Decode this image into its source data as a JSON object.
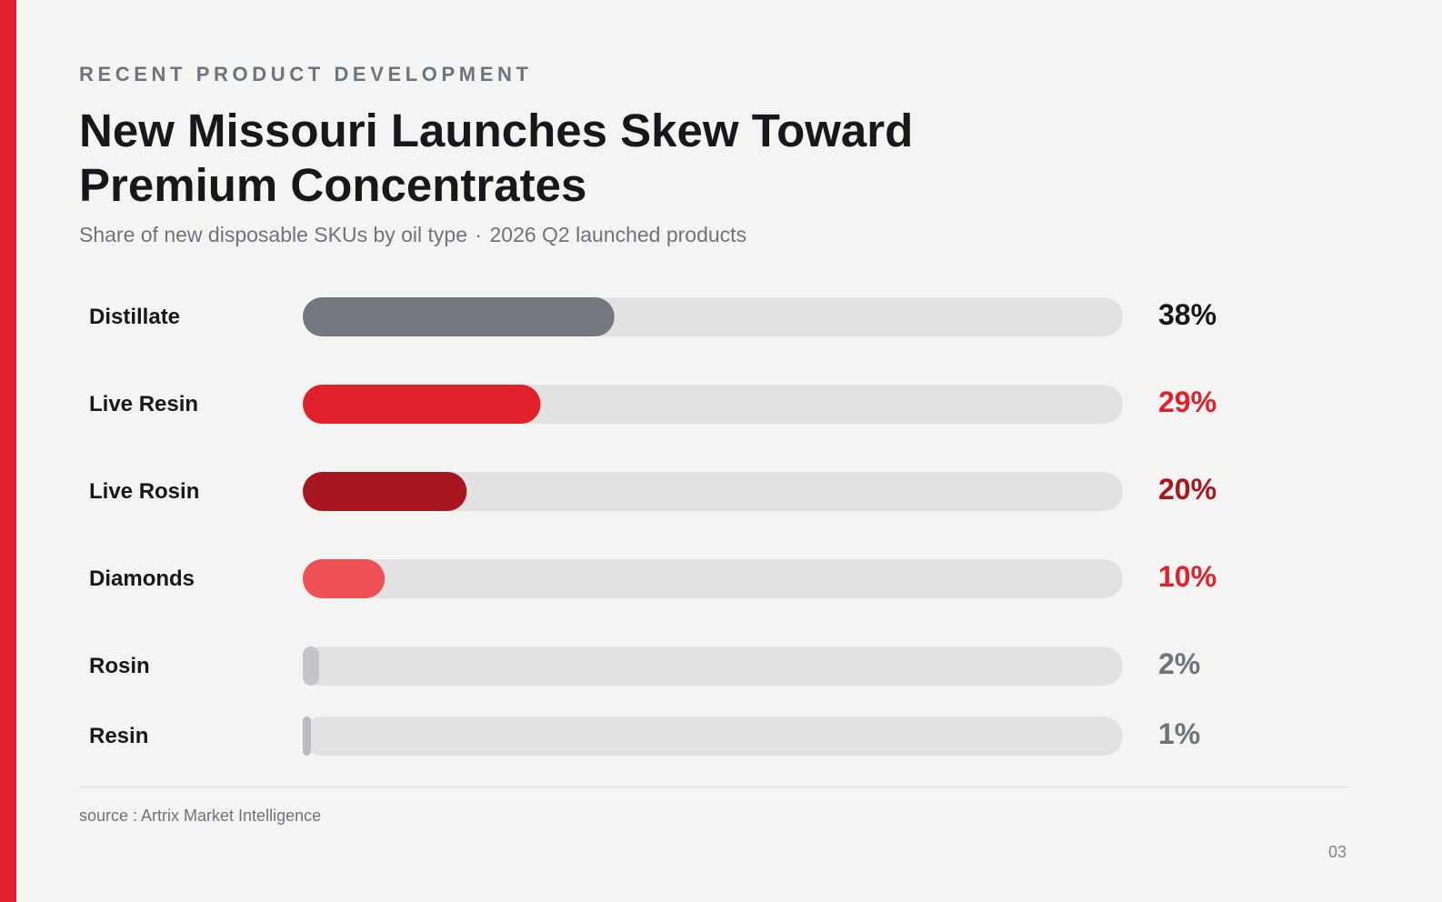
{
  "eyebrow": "RECENT PRODUCT DEVELOPMENT",
  "title": "New Missouri Launches Skew Toward Premium Concentrates",
  "subtitle": {
    "left": "Share of new disposable SKUs by oil type",
    "separator": "·",
    "right": "2026 Q2 launched products"
  },
  "chart_data": {
    "type": "bar",
    "orientation": "horizontal",
    "categories": [
      "Distillate",
      "Live Resin",
      "Live Rosin",
      "Diamonds",
      "Rosin",
      "Resin"
    ],
    "values": [
      38,
      29,
      20,
      10,
      2,
      1
    ],
    "value_labels": [
      "38%",
      "29%",
      "20%",
      "10%",
      "2%",
      "1%"
    ],
    "unit": "%",
    "xlim": [
      0,
      100
    ],
    "grid": false,
    "legend": "none",
    "track_color": "#e2e2e3",
    "bar_colors": [
      "#73787f",
      "#e0212b",
      "#a8161f",
      "#ef5056",
      "#c3c5ca",
      "#b8bbc0"
    ],
    "label_colors": [
      "#16181c",
      "#e0212b",
      "#a8161f",
      "#e0212b",
      "#6f737b",
      "#6f737b"
    ]
  },
  "source": "source : Artrix Market Intelligence",
  "page_number": "03",
  "colors": {
    "accent": "#e0212b",
    "background": "#f4f4f3"
  }
}
